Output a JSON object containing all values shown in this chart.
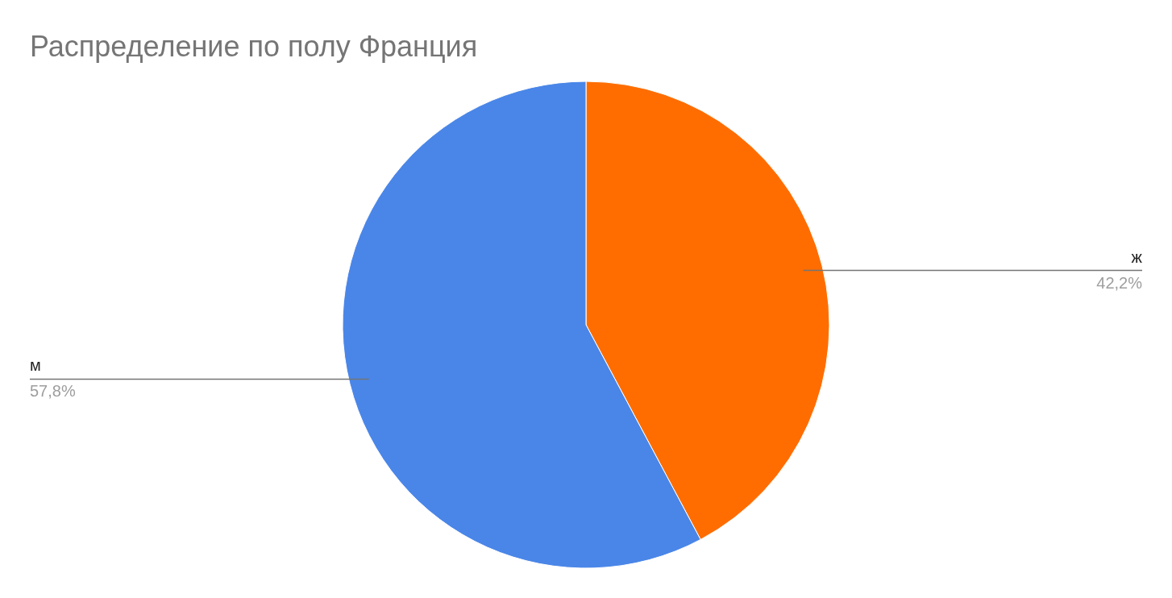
{
  "chart_data": {
    "type": "pie",
    "title": "Распределение по полу Франция",
    "categories": [
      "ж",
      "м"
    ],
    "values": [
      42.2,
      57.8
    ],
    "colors": [
      "#ff6d00",
      "#4a86e8"
    ],
    "value_labels": [
      "42,2%",
      "57,8%"
    ]
  }
}
